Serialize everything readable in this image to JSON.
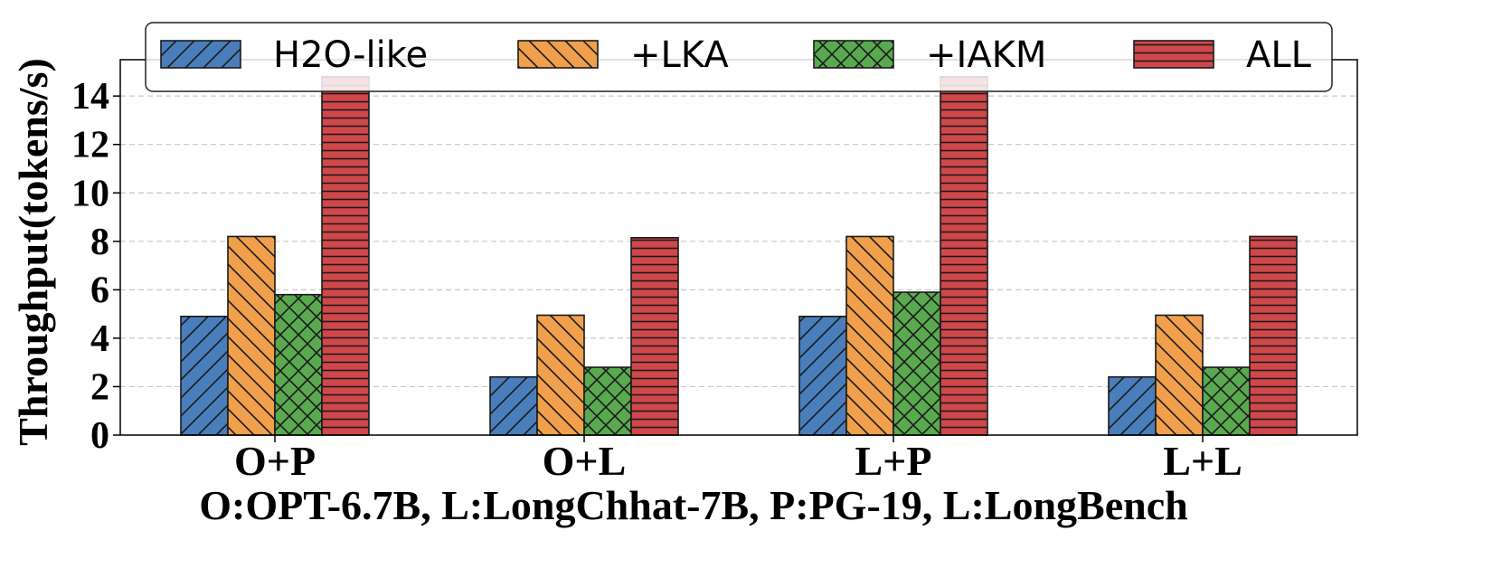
{
  "chart_data": {
    "type": "bar",
    "title": "",
    "xlabel": "O:OPT-6.7B, L:LongChhat-7B, P:PG-19, L:LongBench",
    "ylabel": "Throughput(tokens/s)",
    "categories": [
      "O+P",
      "O+L",
      "L+P",
      "L+L"
    ],
    "ylim": [
      0,
      15.5
    ],
    "yticks": [
      0,
      2,
      4,
      6,
      8,
      10,
      12,
      14
    ],
    "grid": "horizontal dashed",
    "legend_position": "top",
    "series": [
      {
        "name": "H2O-like",
        "color": "#4a7ebb",
        "hatch": "diagonal-forward",
        "values": [
          4.9,
          2.4,
          4.9,
          2.4
        ]
      },
      {
        "name": "+LKA",
        "color": "#f0a04b",
        "hatch": "diagonal-back",
        "values": [
          8.2,
          4.95,
          8.2,
          4.95
        ]
      },
      {
        "name": "+IAKM",
        "color": "#5aa951",
        "hatch": "crosshatch",
        "values": [
          5.8,
          2.8,
          5.9,
          2.8
        ]
      },
      {
        "name": "ALL",
        "color": "#d0474a",
        "hatch": "horizontal",
        "values": [
          14.8,
          8.15,
          14.8,
          8.2
        ]
      }
    ]
  }
}
